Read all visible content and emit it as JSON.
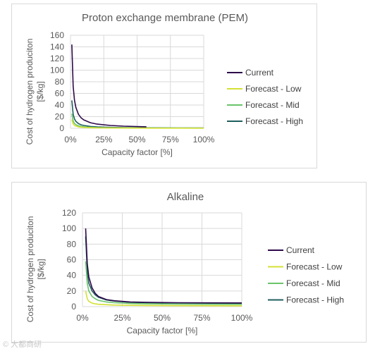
{
  "chart_data": [
    {
      "type": "line",
      "title": "Proton exchange membrane (PEM)",
      "xlabel": "Capacity factor [%]",
      "ylabel": "Cost of hydrogen produciton [$/kg]",
      "ylabel_lines": [
        "Cost of hydrogen produciton",
        "[$/kg]"
      ],
      "xlim": [
        0,
        100
      ],
      "ylim": [
        0,
        160
      ],
      "xticks": [
        0,
        25,
        50,
        75,
        100
      ],
      "xtick_labels": [
        "0%",
        "25%",
        "50%",
        "75%",
        "100%"
      ],
      "yticks": [
        0,
        20,
        40,
        60,
        80,
        100,
        120,
        140,
        160
      ],
      "grid": true,
      "legend_position": "right",
      "series": [
        {
          "name": "Current",
          "color": "#2e0a4a",
          "x_end": 57,
          "x": [
            1,
            2,
            3,
            4,
            6,
            8,
            10,
            15,
            20,
            30,
            40,
            57
          ],
          "y": [
            144,
            72,
            48,
            36,
            24,
            18,
            14.4,
            9.6,
            7.2,
            4.8,
            3.6,
            2.5
          ]
        },
        {
          "name": "Forecast - Low",
          "color": "#d4e034",
          "x_end": 100,
          "x": [
            1,
            2,
            3,
            4,
            6,
            8,
            10,
            15,
            20,
            30,
            40,
            60,
            80,
            100
          ],
          "y": [
            15,
            7.5,
            5,
            3.75,
            2.5,
            1.9,
            1.5,
            1.0,
            0.75,
            0.5,
            0.4,
            0.3,
            0.25,
            0.2
          ]
        },
        {
          "name": "Forecast - Mid",
          "color": "#6ac46a",
          "x_end": 100,
          "x": [
            1,
            2,
            3,
            4,
            6,
            8,
            10,
            15,
            20,
            30,
            40,
            60,
            80,
            100
          ],
          "y": [
            25,
            12.5,
            8.3,
            6.25,
            4.2,
            3.1,
            2.5,
            1.7,
            1.25,
            0.9,
            0.7,
            0.5,
            0.4,
            0.3
          ]
        },
        {
          "name": "Forecast - High",
          "color": "#1f5e5e",
          "x_end": 100,
          "x": [
            1,
            2,
            3,
            4,
            6,
            8,
            10,
            15,
            20,
            30,
            40,
            60,
            80,
            100
          ],
          "y": [
            48,
            24,
            16,
            12,
            8,
            6,
            4.8,
            3.2,
            2.4,
            1.6,
            1.2,
            0.8,
            0.6,
            0.5
          ]
        }
      ]
    },
    {
      "type": "line",
      "title": "Alkaline",
      "xlabel": "Capacity factor [%]",
      "ylabel": "Cost of hydrogen produciton [$/kg]",
      "ylabel_lines": [
        "Cost of hydrogen produciton",
        "[$/kg]"
      ],
      "xlim": [
        0,
        100
      ],
      "ylim": [
        0,
        120
      ],
      "xticks": [
        0,
        25,
        50,
        75,
        100
      ],
      "xtick_labels": [
        "0%",
        "25%",
        "50%",
        "75%",
        "100%"
      ],
      "yticks": [
        0,
        20,
        40,
        60,
        80,
        100,
        120
      ],
      "grid": true,
      "legend_position": "right",
      "series": [
        {
          "name": "Current",
          "color": "#2e0a4a",
          "x": [
            2,
            3,
            4,
            6,
            8,
            10,
            15,
            20,
            30,
            40,
            60,
            80,
            100
          ],
          "y": [
            100,
            55,
            38,
            24,
            17,
            13,
            9,
            7.5,
            6,
            5.5,
            5,
            4.8,
            4.7
          ]
        },
        {
          "name": "Forecast - Low",
          "color": "#d4e034",
          "x": [
            2,
            3,
            4,
            6,
            8,
            10,
            15,
            20,
            30,
            40,
            60,
            80,
            100
          ],
          "y": [
            20,
            10,
            6.7,
            4.5,
            3.5,
            3,
            2.4,
            2,
            1.6,
            1.4,
            1.2,
            1.1,
            1
          ]
        },
        {
          "name": "Forecast - Mid",
          "color": "#6ac46a",
          "x": [
            2,
            3,
            4,
            6,
            8,
            10,
            15,
            20,
            30,
            40,
            60,
            80,
            100
          ],
          "y": [
            58,
            30,
            20,
            13,
            10,
            8,
            6,
            5,
            4,
            3.5,
            3.2,
            3,
            2.9
          ]
        },
        {
          "name": "Forecast - High",
          "color": "#1f5e5e",
          "x": [
            2,
            3,
            4,
            6,
            8,
            10,
            15,
            20,
            30,
            40,
            60,
            80,
            100
          ],
          "y": [
            90,
            45,
            30,
            20,
            15,
            12,
            8.5,
            7,
            5.5,
            5,
            4.5,
            4.3,
            4.2
          ]
        }
      ]
    }
  ],
  "watermark": "© 大都商研"
}
